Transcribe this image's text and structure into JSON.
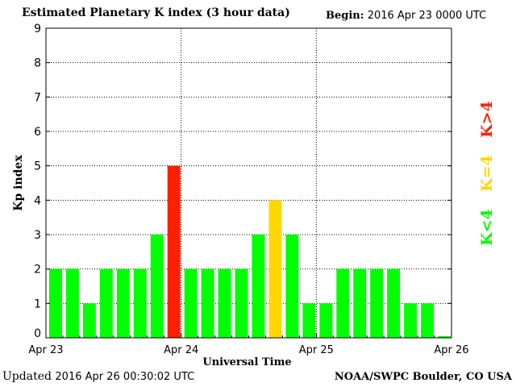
{
  "header": {
    "title": "Estimated Planetary K index (3 hour data)",
    "begin_label": "Begin:",
    "begin_value": "2016 Apr 23 0000 UTC"
  },
  "footer": {
    "updated_label": "Updated",
    "updated_value": "2016 Apr 26 00:30:02 UTC",
    "credit": "NOAA/SWPC Boulder, CO USA"
  },
  "colors": {
    "low": "#00ff00",
    "moderate": "#ffd700",
    "high": "#ff2000"
  },
  "chart_data": {
    "type": "bar",
    "title": "Estimated Planetary K index (3 hour data)",
    "xlabel": "Universal Time",
    "ylabel": "Kp index",
    "ylim": [
      0,
      9
    ],
    "yticks": [
      "0",
      "1",
      "2",
      "3",
      "4",
      "5",
      "6",
      "7",
      "8",
      "9"
    ],
    "xticks": [
      "Apr 23",
      "Apr 24",
      "Apr 25",
      "Apr 26"
    ],
    "grid": true,
    "values": [
      2,
      2,
      1,
      2,
      2,
      2,
      3,
      5,
      2,
      2,
      2,
      2,
      3,
      4,
      3,
      1,
      1,
      2,
      2,
      2,
      2,
      1,
      1,
      0.05
    ],
    "legend": [
      {
        "label": "K<4",
        "color": "#00ff00"
      },
      {
        "label": "K=4",
        "color": "#ffd700"
      },
      {
        "label": "K>4",
        "color": "#ff2000"
      }
    ],
    "legend_position": "right"
  }
}
